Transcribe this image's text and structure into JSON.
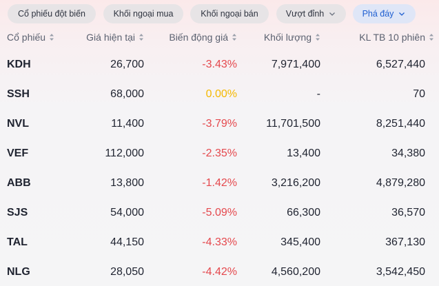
{
  "filters": [
    {
      "label": "Cổ phiếu đột biến",
      "active": false,
      "dropdown": false
    },
    {
      "label": "Khối ngoại mua",
      "active": false,
      "dropdown": false
    },
    {
      "label": "Khối ngoại bán",
      "active": false,
      "dropdown": false
    },
    {
      "label": "Vượt đỉnh",
      "active": false,
      "dropdown": true
    },
    {
      "label": "Phá đáy",
      "active": true,
      "dropdown": true
    }
  ],
  "columns": [
    "Cổ phiếu",
    "Giá hiện tại",
    "Biến động giá",
    "Khối lượng",
    "KL TB 10 phiên"
  ],
  "rows": [
    {
      "symbol": "KDH",
      "price": "26,700",
      "change": "-3.43%",
      "trend": "down",
      "volume": "7,971,400",
      "avg10": "6,527,440"
    },
    {
      "symbol": "SSH",
      "price": "68,000",
      "change": "0.00%",
      "trend": "flat",
      "volume": "-",
      "avg10": "70"
    },
    {
      "symbol": "NVL",
      "price": "11,400",
      "change": "-3.79%",
      "trend": "down",
      "volume": "11,701,500",
      "avg10": "8,251,440"
    },
    {
      "symbol": "VEF",
      "price": "112,000",
      "change": "-2.35%",
      "trend": "down",
      "volume": "13,400",
      "avg10": "34,380"
    },
    {
      "symbol": "ABB",
      "price": "13,800",
      "change": "-1.42%",
      "trend": "down",
      "volume": "3,216,200",
      "avg10": "4,879,280"
    },
    {
      "symbol": "SJS",
      "price": "54,000",
      "change": "-5.09%",
      "trend": "down",
      "volume": "66,300",
      "avg10": "36,570"
    },
    {
      "symbol": "TAL",
      "price": "44,150",
      "change": "-4.33%",
      "trend": "down",
      "volume": "345,400",
      "avg10": "367,130"
    },
    {
      "symbol": "NLG",
      "price": "28,050",
      "change": "-4.42%",
      "trend": "down",
      "volume": "4,560,200",
      "avg10": "3,542,450"
    }
  ],
  "colors": {
    "down": "#e5484d",
    "flat": "#f5b800",
    "active_pill_text": "#1f5fd1"
  }
}
